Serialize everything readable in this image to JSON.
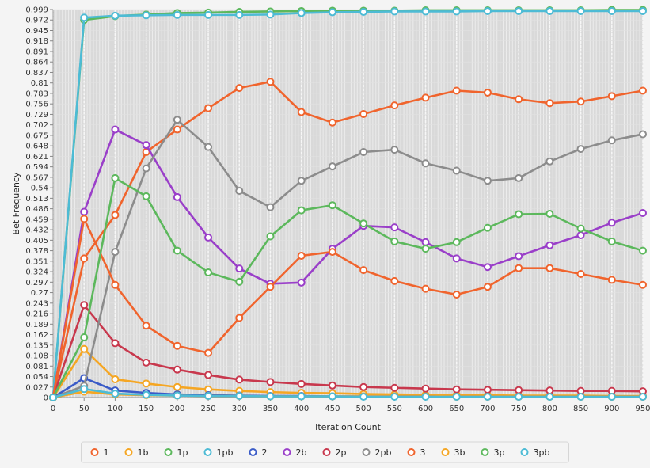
{
  "chart_data": {
    "type": "line",
    "xlabel": "Iteration Count",
    "ylabel": "Bet Frequency",
    "xlim": [
      0,
      950
    ],
    "ylim": [
      0,
      0.999
    ],
    "x_ticks": [
      0,
      50,
      100,
      150,
      200,
      250,
      300,
      350,
      400,
      450,
      500,
      550,
      600,
      650,
      700,
      750,
      800,
      850,
      900,
      950
    ],
    "x_tick_labels": [
      "0",
      "50",
      "100",
      "150",
      "200",
      "250",
      "300",
      "350",
      "400",
      "450",
      "500",
      "550",
      "600",
      "650",
      "700",
      "750",
      "800",
      "850",
      "900",
      "950"
    ],
    "y_tick_labels": [
      "0",
      "0.027",
      "0.054",
      "0.081",
      "0.108",
      "0.135",
      "0.162",
      "0.189",
      "0.216",
      "0.243",
      "0.27",
      "0.297",
      "0.324",
      "0.351",
      "0.378",
      "0.405",
      "0.432",
      "0.459",
      "0.486",
      "0.513",
      "0.54",
      "0.567",
      "0.594",
      "0.621",
      "0.648",
      "0.675",
      "0.702",
      "0.729",
      "0.756",
      "0.783",
      "0.81",
      "0.837",
      "0.864",
      "0.891",
      "0.918",
      "0.945",
      "0.972",
      "0.999"
    ],
    "x": [
      0,
      50,
      100,
      150,
      200,
      250,
      300,
      350,
      400,
      450,
      500,
      550,
      600,
      650,
      700,
      750,
      800,
      850,
      900,
      950
    ],
    "grid": true,
    "legend_position": "bottom",
    "series": [
      {
        "name": "1",
        "color": "#f0642d",
        "values": [
          0.0,
          0.358,
          0.47,
          0.632,
          0.69,
          0.745,
          0.797,
          0.813,
          0.735,
          0.708,
          0.73,
          0.752,
          0.772,
          0.79,
          0.785,
          0.768,
          0.758,
          0.762,
          0.776,
          0.79
        ]
      },
      {
        "name": "1b",
        "color": "#f5a623",
        "values": [
          0.0,
          0.125,
          0.047,
          0.036,
          0.027,
          0.021,
          0.017,
          0.014,
          0.012,
          0.011,
          0.009,
          0.008,
          0.007,
          0.007,
          0.006,
          0.005,
          0.005,
          0.005,
          0.004,
          0.004
        ]
      },
      {
        "name": "1p",
        "color": "#5cb85c",
        "values": [
          0.0,
          0.972,
          0.982,
          0.986,
          0.99,
          0.991,
          0.993,
          0.994,
          0.995,
          0.996,
          0.996,
          0.996,
          0.997,
          0.997,
          0.997,
          0.997,
          0.997,
          0.997,
          0.998,
          0.998
        ]
      },
      {
        "name": "1pb",
        "color": "#4dbbd5",
        "values": [
          0.0,
          0.978,
          0.983,
          0.984,
          0.985,
          0.985,
          0.985,
          0.986,
          0.99,
          0.992,
          0.993,
          0.994,
          0.994,
          0.994,
          0.995,
          0.995,
          0.995,
          0.995,
          0.995,
          0.995
        ]
      },
      {
        "name": "2",
        "color": "#3a5bc7",
        "values": [
          0.0,
          0.05,
          0.018,
          0.012,
          0.008,
          0.006,
          0.005,
          0.004,
          0.004,
          0.003,
          0.003,
          0.003,
          0.003,
          0.002,
          0.002,
          0.002,
          0.002,
          0.002,
          0.002,
          0.002
        ]
      },
      {
        "name": "2b",
        "color": "#9a3fc9",
        "values": [
          0.0,
          0.478,
          0.69,
          0.65,
          0.516,
          0.412,
          0.332,
          0.293,
          0.296,
          0.383,
          0.442,
          0.438,
          0.4,
          0.358,
          0.336,
          0.364,
          0.392,
          0.418,
          0.45,
          0.475
        ]
      },
      {
        "name": "2p",
        "color": "#c8384d",
        "values": [
          0.0,
          0.238,
          0.14,
          0.09,
          0.072,
          0.058,
          0.046,
          0.04,
          0.035,
          0.031,
          0.027,
          0.025,
          0.023,
          0.021,
          0.02,
          0.019,
          0.018,
          0.017,
          0.017,
          0.016
        ]
      },
      {
        "name": "2pb",
        "color": "#8c8c8c",
        "values": [
          0.0,
          0.03,
          0.375,
          0.59,
          0.715,
          0.645,
          0.532,
          0.49,
          0.558,
          0.595,
          0.632,
          0.638,
          0.603,
          0.584,
          0.558,
          0.565,
          0.608,
          0.64,
          0.662,
          0.678
        ]
      },
      {
        "name": "3",
        "color": "#f0642d",
        "values": [
          0.0,
          0.46,
          0.29,
          0.185,
          0.133,
          0.115,
          0.205,
          0.285,
          0.365,
          0.375,
          0.328,
          0.3,
          0.28,
          0.265,
          0.285,
          0.333,
          0.333,
          0.318,
          0.303,
          0.29
        ]
      },
      {
        "name": "3b",
        "color": "#f5a623",
        "values": [
          0.0,
          0.015,
          0.008,
          0.006,
          0.005,
          0.004,
          0.004,
          0.003,
          0.003,
          0.003,
          0.003,
          0.003,
          0.003,
          0.002,
          0.002,
          0.002,
          0.002,
          0.002,
          0.002,
          0.002
        ]
      },
      {
        "name": "3p",
        "color": "#5cb85c",
        "values": [
          0.0,
          0.155,
          0.565,
          0.518,
          0.378,
          0.322,
          0.298,
          0.415,
          0.482,
          0.495,
          0.448,
          0.402,
          0.383,
          0.4,
          0.437,
          0.472,
          0.473,
          0.435,
          0.402,
          0.378
        ]
      },
      {
        "name": "3pb",
        "color": "#4dbbd5",
        "values": [
          0.0,
          0.022,
          0.01,
          0.007,
          0.005,
          0.004,
          0.004,
          0.003,
          0.003,
          0.003,
          0.002,
          0.002,
          0.002,
          0.002,
          0.002,
          0.002,
          0.002,
          0.002,
          0.002,
          0.002
        ]
      }
    ]
  }
}
